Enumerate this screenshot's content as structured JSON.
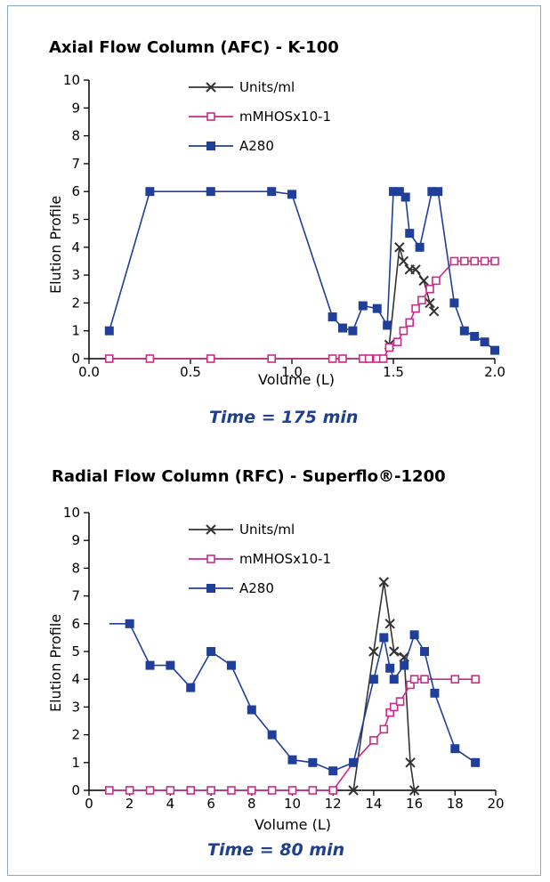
{
  "chart_data": [
    {
      "type": "line",
      "title": "Axial Flow Column (AFC) - K-100",
      "caption": "Time = 175 min",
      "xlabel": "Volume (L)",
      "ylabel": "Elution Profile",
      "xlim": [
        0.0,
        2.0
      ],
      "ylim": [
        0,
        10
      ],
      "xticks": [
        "0.0",
        "0.5",
        "1.0",
        "1.5",
        "2.0"
      ],
      "yticks": [
        "0",
        "1",
        "2",
        "3",
        "4",
        "5",
        "6",
        "7",
        "8",
        "9",
        "10"
      ],
      "legend_position": "top-center",
      "series": [
        {
          "name": "Units/ml",
          "color": "#333333",
          "marker": "x",
          "points": [
            [
              1.48,
              0.5
            ],
            [
              1.53,
              4.0
            ],
            [
              1.55,
              3.5
            ],
            [
              1.58,
              3.2
            ],
            [
              1.61,
              3.2
            ],
            [
              1.65,
              2.8
            ],
            [
              1.68,
              2.0
            ],
            [
              1.7,
              1.7
            ]
          ]
        },
        {
          "name": "mMHOSx10-1",
          "color": "#cc2a8c",
          "marker": "open-square",
          "points": [
            [
              0.1,
              0.0
            ],
            [
              0.3,
              0.0
            ],
            [
              0.6,
              0.0
            ],
            [
              0.9,
              0.0
            ],
            [
              1.2,
              0.0
            ],
            [
              1.25,
              0.0
            ],
            [
              1.35,
              0.0
            ],
            [
              1.38,
              0.0
            ],
            [
              1.42,
              0.0
            ],
            [
              1.45,
              0.0
            ],
            [
              1.48,
              0.4
            ],
            [
              1.52,
              0.6
            ],
            [
              1.55,
              1.0
            ],
            [
              1.58,
              1.3
            ],
            [
              1.61,
              1.8
            ],
            [
              1.64,
              2.1
            ],
            [
              1.68,
              2.5
            ],
            [
              1.71,
              2.8
            ],
            [
              1.8,
              3.5
            ],
            [
              1.85,
              3.5
            ],
            [
              1.9,
              3.5
            ],
            [
              1.95,
              3.5
            ],
            [
              2.0,
              3.5
            ]
          ]
        },
        {
          "name": "A280",
          "color": "#1f3f9a",
          "marker": "filled-square",
          "points": [
            [
              0.1,
              1.0
            ],
            [
              0.3,
              6.0
            ],
            [
              0.6,
              6.0
            ],
            [
              0.9,
              6.0
            ],
            [
              1.0,
              5.9
            ],
            [
              1.2,
              1.5
            ],
            [
              1.25,
              1.1
            ],
            [
              1.3,
              1.0
            ],
            [
              1.35,
              1.9
            ],
            [
              1.42,
              1.8
            ],
            [
              1.47,
              1.2
            ],
            [
              1.5,
              6.0
            ],
            [
              1.53,
              6.0
            ],
            [
              1.56,
              5.8
            ],
            [
              1.58,
              4.5
            ],
            [
              1.63,
              4.0
            ],
            [
              1.69,
              6.0
            ],
            [
              1.72,
              6.0
            ],
            [
              1.8,
              2.0
            ],
            [
              1.85,
              1.0
            ],
            [
              1.9,
              0.8
            ],
            [
              1.95,
              0.6
            ],
            [
              2.0,
              0.3
            ]
          ]
        }
      ]
    },
    {
      "type": "line",
      "title": "Radial Flow Column (RFC) - Superflo®-1200",
      "caption": "Time = 80 min",
      "xlabel": "Volume (L)",
      "ylabel": "Elution Profile",
      "xlim": [
        0,
        20
      ],
      "ylim": [
        0,
        10
      ],
      "xticks": [
        "0",
        "2",
        "4",
        "6",
        "8",
        "10",
        "12",
        "14",
        "16",
        "18",
        "20"
      ],
      "yticks": [
        "0",
        "1",
        "2",
        "3",
        "4",
        "5",
        "6",
        "7",
        "8",
        "9",
        "10"
      ],
      "legend_position": "top-center",
      "series": [
        {
          "name": "Units/ml",
          "color": "#333333",
          "marker": "x",
          "points": [
            [
              13,
              0
            ],
            [
              14,
              5.0
            ],
            [
              14.5,
              7.5
            ],
            [
              14.8,
              6.0
            ],
            [
              15,
              5.0
            ],
            [
              15.5,
              4.8
            ],
            [
              15.8,
              1.0
            ],
            [
              16,
              0
            ]
          ]
        },
        {
          "name": "mMHOSx10-1",
          "color": "#cc2a8c",
          "marker": "open-square",
          "points": [
            [
              1,
              0
            ],
            [
              2,
              0
            ],
            [
              3,
              0
            ],
            [
              4,
              0
            ],
            [
              5,
              0
            ],
            [
              6,
              0
            ],
            [
              7,
              0
            ],
            [
              8,
              0
            ],
            [
              9,
              0
            ],
            [
              10,
              0
            ],
            [
              11,
              0
            ],
            [
              12,
              0
            ],
            [
              13,
              1.0
            ],
            [
              14,
              1.8
            ],
            [
              14.5,
              2.2
            ],
            [
              14.8,
              2.8
            ],
            [
              15,
              3.0
            ],
            [
              15.3,
              3.2
            ],
            [
              15.8,
              3.8
            ],
            [
              16,
              4.0
            ],
            [
              16.5,
              4.0
            ],
            [
              18,
              4.0
            ],
            [
              19,
              4.0
            ]
          ]
        },
        {
          "name": "A280",
          "color": "#1f3f9a",
          "marker": "filled-square",
          "line_start": [
            1,
            6.0
          ],
          "points": [
            [
              2,
              6.0
            ],
            [
              3,
              4.5
            ],
            [
              4,
              4.5
            ],
            [
              5,
              3.7
            ],
            [
              6,
              5.0
            ],
            [
              7,
              4.5
            ],
            [
              8,
              2.9
            ],
            [
              9,
              2.0
            ],
            [
              10,
              1.1
            ],
            [
              11,
              1.0
            ],
            [
              12,
              0.7
            ],
            [
              13,
              1.0
            ],
            [
              14,
              4.0
            ],
            [
              14.5,
              5.5
            ],
            [
              14.8,
              4.4
            ],
            [
              15,
              4.0
            ],
            [
              15.5,
              4.5
            ],
            [
              16,
              5.6
            ],
            [
              16.5,
              5.0
            ],
            [
              17,
              3.5
            ],
            [
              18,
              1.5
            ],
            [
              19,
              1.0
            ]
          ]
        }
      ]
    }
  ]
}
